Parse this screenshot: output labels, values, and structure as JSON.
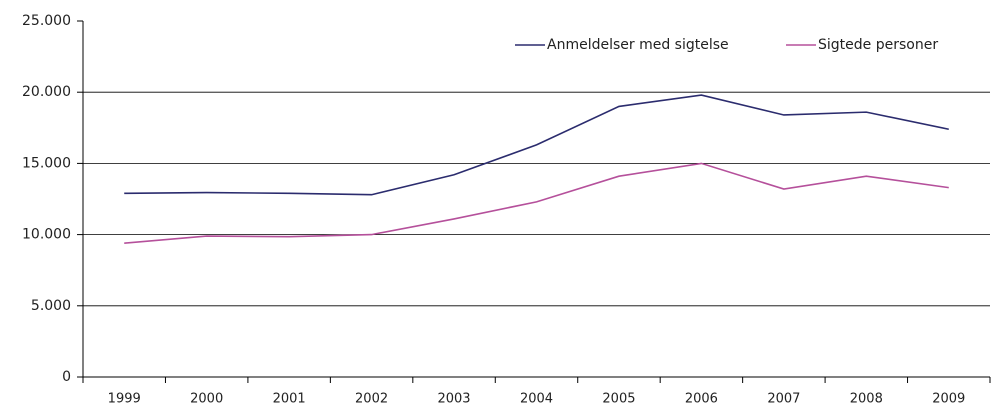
{
  "chart_data": {
    "type": "line",
    "categories": [
      "1999",
      "2000",
      "2001",
      "2002",
      "2003",
      "2004",
      "2005",
      "2006",
      "2007",
      "2008",
      "2009"
    ],
    "series": [
      {
        "name": "Anmeldelser med sigtelse",
        "color": "#2b2c6e",
        "values": [
          12900,
          12950,
          12900,
          12800,
          14200,
          16300,
          19000,
          19800,
          18400,
          18600,
          17400
        ]
      },
      {
        "name": "Sigtede personer",
        "color": "#b5509b",
        "values": [
          9400,
          9900,
          9850,
          10000,
          11100,
          12300,
          14100,
          15000,
          13200,
          14100,
          13300
        ]
      }
    ],
    "ylim": [
      0,
      25000
    ],
    "yticks": [
      0,
      {
        "value": 5000,
        "label": "5.000"
      },
      {
        "value": 10000,
        "label": "10.000"
      },
      {
        "value": 15000,
        "label": "15.000"
      },
      {
        "value": 20000,
        "label": "20.000"
      },
      {
        "value": 25000,
        "label": "25.000"
      }
    ],
    "grid": true,
    "legend": "top-right"
  }
}
